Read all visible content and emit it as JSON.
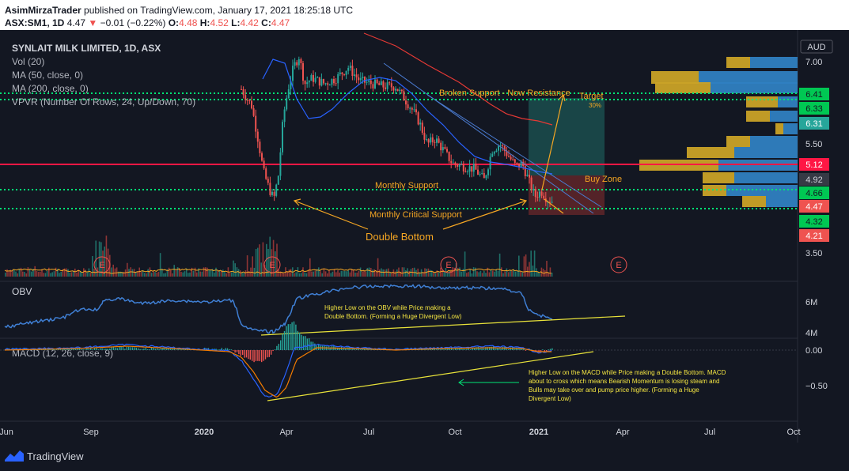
{
  "header": {
    "author": "AsimMirzaTrader",
    "published_text": "published on TradingView.com, January 17, 2021 18:25:18 UTC",
    "symbol": "ASX:SM1, 1D",
    "last": "4.47",
    "change": "−0.01 (−0.22%)",
    "o_label": "O:",
    "o_val": "4.48",
    "h_label": "H:",
    "h_val": "4.52",
    "l_label": "L:",
    "l_val": "4.42",
    "c_label": "C:",
    "c_val": "4.47"
  },
  "legend": {
    "title": "SYNLAIT MILK LIMITED, 1D, ASX",
    "vol": "Vol (20)",
    "ma50": "MA (50, close, 0)",
    "ma200": "MA (200, close, 0)",
    "vpvr": "VPVR (Number Of Rows, 24, Up/Down, 70)"
  },
  "colors": {
    "background": "#131722",
    "up": "#26a69a",
    "down": "#ef5350",
    "ma50": "#2962ff",
    "ma200": "#e53935",
    "vpvr_up": "#2f7fc1",
    "vpvr_down": "#c9a227",
    "support_dotted": "#00e676",
    "resistance": "#ff1744",
    "annotation": "#f5a623",
    "obv_line": "#3f7fd4",
    "macd_line": "#2962ff",
    "signal_line": "#f57c00"
  },
  "axis": {
    "currency": "AUD",
    "price_ticks": [
      "7.00",
      "5.50",
      "3.50"
    ],
    "price_badges": [
      {
        "value": "6.41",
        "color": "#00c853",
        "text_color": "#131722"
      },
      {
        "value": "6.33",
        "color": "#00c853",
        "text_color": "#131722"
      },
      {
        "value": "6.31",
        "color": "#26a69a",
        "text_color": "#ffffff"
      },
      {
        "value": "5.12",
        "color": "#ff1744",
        "text_color": "#ffffff"
      },
      {
        "value": "4.92",
        "color": "#363a45",
        "text_color": "#d1d4dc"
      },
      {
        "value": "4.66",
        "color": "#00c853",
        "text_color": "#131722"
      },
      {
        "value": "4.47",
        "color": "#ef5350",
        "text_color": "#ffffff"
      },
      {
        "value": "4.32",
        "color": "#00c853",
        "text_color": "#131722"
      },
      {
        "value": "4.21",
        "color": "#ef5350",
        "text_color": "#ffffff"
      }
    ],
    "obv_ticks": [
      "6M",
      "4M"
    ],
    "macd_ticks": [
      "0.00",
      "−0.50"
    ],
    "time_ticks": [
      {
        "label": "Jun",
        "bold": false
      },
      {
        "label": "Sep",
        "bold": false
      },
      {
        "label": "2020",
        "bold": true
      },
      {
        "label": "Apr",
        "bold": false
      },
      {
        "label": "Jul",
        "bold": false
      },
      {
        "label": "Oct",
        "bold": false
      },
      {
        "label": "2021",
        "bold": true
      },
      {
        "label": "Apr",
        "bold": false
      },
      {
        "label": "Jul",
        "bold": false
      },
      {
        "label": "Oct",
        "bold": false
      }
    ]
  },
  "annotations": {
    "broken_support": "Broken Support - Now Resistance",
    "target": "Target",
    "target_pct": "30%",
    "buy_zone": "Buy Zone",
    "monthly_support": "Monthly Support",
    "monthly_critical": "Monthly Critical Support",
    "double_bottom": "Double Bottom",
    "earnings_marker": "E",
    "obv_label": "OBV",
    "macd_label": "MACD (12, 26, close, 9)",
    "obv_note": [
      "Higher Low on the OBV while Price making a",
      "Double Bottom. (Forming a Huge Divergent Low)"
    ],
    "macd_note": [
      "Higher Low on the MACD while Price making a Double Bottom. MACD",
      "about to cross which means Bearish Momentum is losing steam and",
      "Bulls may take over and pump price higher. (Forming a Huge",
      "Divergent Low)"
    ]
  },
  "footer": {
    "brand": "TradingView"
  },
  "chart_data": {
    "type": "candlestick",
    "x": [
      "2019-06",
      "2019-09",
      "2020-01",
      "2020-02",
      "2020-03",
      "2020-04",
      "2020-05",
      "2020-06",
      "2020-07",
      "2020-08",
      "2020-09",
      "2020-10",
      "2020-11",
      "2020-12",
      "2021-01"
    ],
    "close": [
      6.5,
      6.5,
      6.4,
      6.4,
      4.6,
      6.7,
      6.8,
      6.5,
      6.6,
      6.2,
      5.6,
      5.1,
      5.2,
      4.9,
      4.47
    ],
    "horizontal_levels": {
      "resistance": 5.12,
      "broken_support": 6.41,
      "monthly_support": 4.66,
      "monthly_critical_support": 4.32
    },
    "obv": {
      "ticks": [
        "6M",
        "4M"
      ]
    },
    "macd": {
      "ticks": [
        "0.00",
        "-0.50"
      ]
    }
  }
}
